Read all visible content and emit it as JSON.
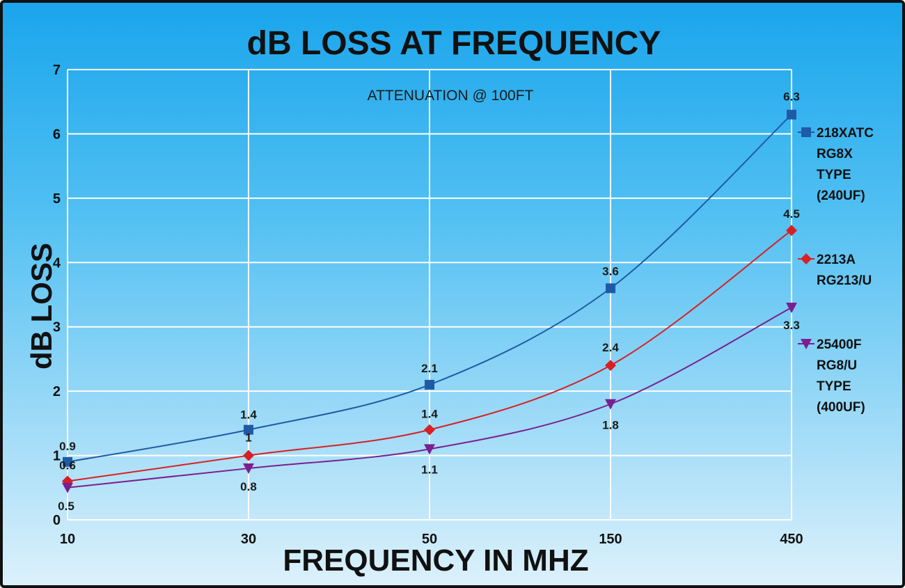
{
  "chart_data": {
    "type": "line",
    "title": "dB LOSS AT FREQUENCY",
    "subtitle": "ATTENUATION @ 100FT",
    "xlabel": "FREQUENCY IN MHZ",
    "ylabel": "dB LOSS",
    "categories": [
      "10",
      "30",
      "50",
      "150",
      "450"
    ],
    "y_ticks": [
      "0",
      "1",
      "2",
      "3",
      "4",
      "5",
      "6",
      "7"
    ],
    "ylim": [
      0,
      7
    ],
    "grid": true,
    "legend_position": "right",
    "series": [
      {
        "key": "s1",
        "name_lines": [
          "218XATC",
          "RG8X",
          "TYPE",
          "(240UF)"
        ],
        "values": [
          0.9,
          1.4,
          2.1,
          3.6,
          6.3
        ],
        "labels": [
          "0.9",
          "1.4",
          "2.1",
          "3.6",
          "6.3"
        ],
        "color": "#1f5aa6",
        "marker": "square"
      },
      {
        "key": "s2",
        "name_lines": [
          "2213A",
          "RG213/U"
        ],
        "values": [
          0.6,
          1.0,
          1.4,
          2.4,
          4.5
        ],
        "labels": [
          "0.6",
          "1",
          "1.4",
          "2.4",
          "4.5"
        ],
        "color": "#d81f26",
        "marker": "diamond"
      },
      {
        "key": "s3",
        "name_lines": [
          "25400F",
          "RG8/U",
          "TYPE",
          "(400UF)"
        ],
        "values": [
          0.5,
          0.8,
          1.1,
          1.8,
          3.3
        ],
        "labels": [
          "0.5",
          "0.8",
          "1.1",
          "1.8",
          "3.3"
        ],
        "color": "#7a1f8f",
        "marker": "triangle-down"
      }
    ]
  }
}
